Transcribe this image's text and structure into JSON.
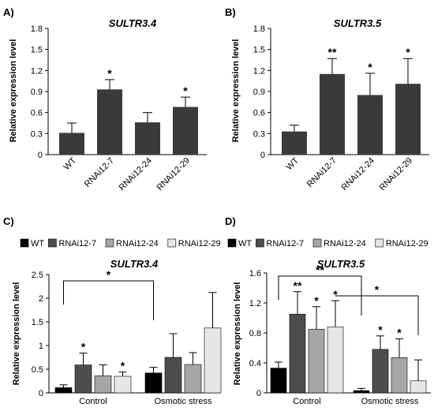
{
  "colors": {
    "single_bar": "#3a3a3a",
    "axis": "#000000",
    "WT": "#000000",
    "RNAi12-7": "#4d4d4d",
    "RNAi12-24": "#a6a6a6",
    "RNAi12-29": "#e6e6e6"
  },
  "chart_data": [
    {
      "panel": "A)",
      "type": "bar",
      "title": "SULTR3.4",
      "ylabel": "Relative expression level",
      "ylim": [
        0,
        1.8
      ],
      "yticks": [
        "0",
        "0.3",
        "0.6",
        "0.9",
        "1.2",
        "1.5",
        "1.8"
      ],
      "categories": [
        "WT",
        "RNAi12-7",
        "RNAi12-24",
        "RNAi12-29"
      ],
      "values": [
        0.31,
        0.93,
        0.46,
        0.68
      ],
      "errors": [
        0.14,
        0.14,
        0.14,
        0.14
      ],
      "significance": [
        "",
        "*",
        "",
        "*"
      ]
    },
    {
      "panel": "B)",
      "type": "bar",
      "title": "SULTR3.5",
      "ylabel": "Relative expression level",
      "ylim": [
        0,
        1.8
      ],
      "yticks": [
        "0",
        "0.3",
        "0.6",
        "0.9",
        "1.2",
        "1.5",
        "1.8"
      ],
      "categories": [
        "WT",
        "RNAi12-7",
        "RNAi12-24",
        "RNAi12-29"
      ],
      "values": [
        0.33,
        1.15,
        0.85,
        1.01
      ],
      "errors": [
        0.09,
        0.22,
        0.31,
        0.36
      ],
      "significance": [
        "",
        "**",
        "*",
        "*"
      ]
    },
    {
      "panel": "C)",
      "type": "bar",
      "title": "SULTR3.4",
      "ylabel": "Relative expression level",
      "ylim": [
        0,
        2.5
      ],
      "yticks": [
        "0",
        "0.5",
        "1",
        "1.5",
        "2",
        "2.5"
      ],
      "categories": [
        "Control",
        "Osmotic stress"
      ],
      "series": [
        {
          "name": "WT",
          "values": [
            0.11,
            0.42
          ],
          "errors": [
            0.06,
            0.12
          ],
          "significance": [
            "",
            ""
          ]
        },
        {
          "name": "RNAi12-7",
          "values": [
            0.59,
            0.75
          ],
          "errors": [
            0.25,
            0.5
          ],
          "significance": [
            "*",
            ""
          ]
        },
        {
          "name": "RNAi12-24",
          "values": [
            0.36,
            0.6
          ],
          "errors": [
            0.23,
            0.25
          ],
          "significance": [
            "",
            ""
          ]
        },
        {
          "name": "RNAi12-29",
          "values": [
            0.35,
            1.37
          ],
          "errors": [
            0.09,
            0.75
          ],
          "significance": [
            "*",
            ""
          ]
        }
      ],
      "comparisons": [
        {
          "from": "Control / WT",
          "to": "Osmotic stress / WT",
          "label": "*"
        }
      ]
    },
    {
      "panel": "D)",
      "type": "bar",
      "title": "SULTR3.5",
      "ylabel": "Relative expression level",
      "ylim": [
        0,
        1.6
      ],
      "yticks": [
        "0",
        "0.4",
        "0.8",
        "1.2",
        "1.6"
      ],
      "categories": [
        "Control",
        "Osmotic stress"
      ],
      "series": [
        {
          "name": "WT",
          "values": [
            0.33,
            0.03
          ],
          "errors": [
            0.08,
            0.03
          ],
          "significance": [
            "",
            ""
          ]
        },
        {
          "name": "RNAi12-7",
          "values": [
            1.05,
            0.58
          ],
          "errors": [
            0.3,
            0.18
          ],
          "significance": [
            "**",
            "*"
          ]
        },
        {
          "name": "RNAi12-24",
          "values": [
            0.85,
            0.47
          ],
          "errors": [
            0.3,
            0.25
          ],
          "significance": [
            "*",
            "*"
          ]
        },
        {
          "name": "RNAi12-29",
          "values": [
            0.88,
            0.16
          ],
          "errors": [
            0.35,
            0.28
          ],
          "significance": [
            "*",
            ""
          ]
        }
      ],
      "comparisons": [
        {
          "from": "Control / WT",
          "to": "Osmotic stress / WT",
          "label": "**"
        },
        {
          "from": "Control / RNAi12-29",
          "to": "Osmotic stress / RNAi12-29",
          "label": "*"
        }
      ]
    }
  ]
}
